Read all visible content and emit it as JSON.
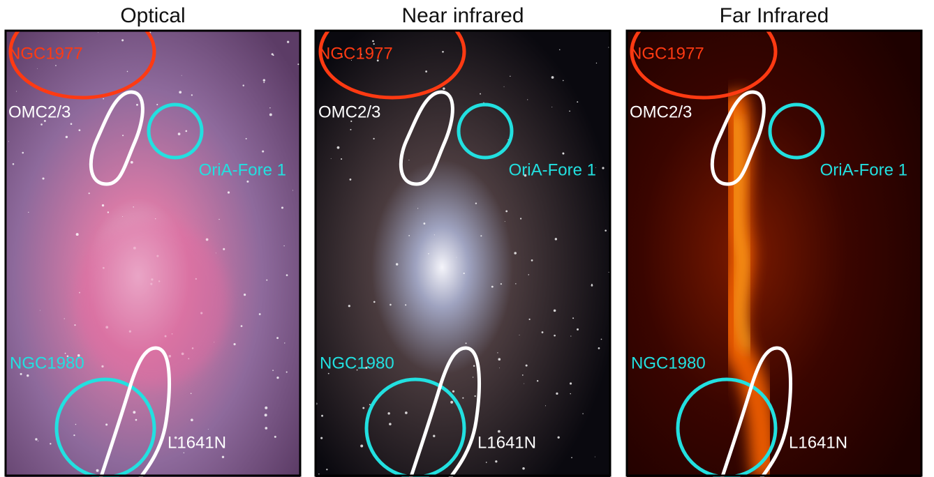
{
  "panels": [
    {
      "title": "Optical",
      "labels": {
        "ngc1977": "NGC1977",
        "omc": "OMC2/3",
        "fore": "OriA-Fore 1",
        "ngc1980": "NGC1980",
        "l1641": "L1641N"
      }
    },
    {
      "title": "Near infrared",
      "labels": {
        "ngc1977": "NGC1977",
        "omc": "OMC2/3",
        "fore": "OriA-Fore 1",
        "ngc1980": "NGC1980",
        "l1641": "L1641N"
      }
    },
    {
      "title": "Far Infrared",
      "labels": {
        "ngc1977": "NGC1977",
        "omc": "OMC2/3",
        "fore": "OriA-Fore 1",
        "ngc1980": "NGC1980",
        "l1641": "L1641N"
      }
    }
  ]
}
